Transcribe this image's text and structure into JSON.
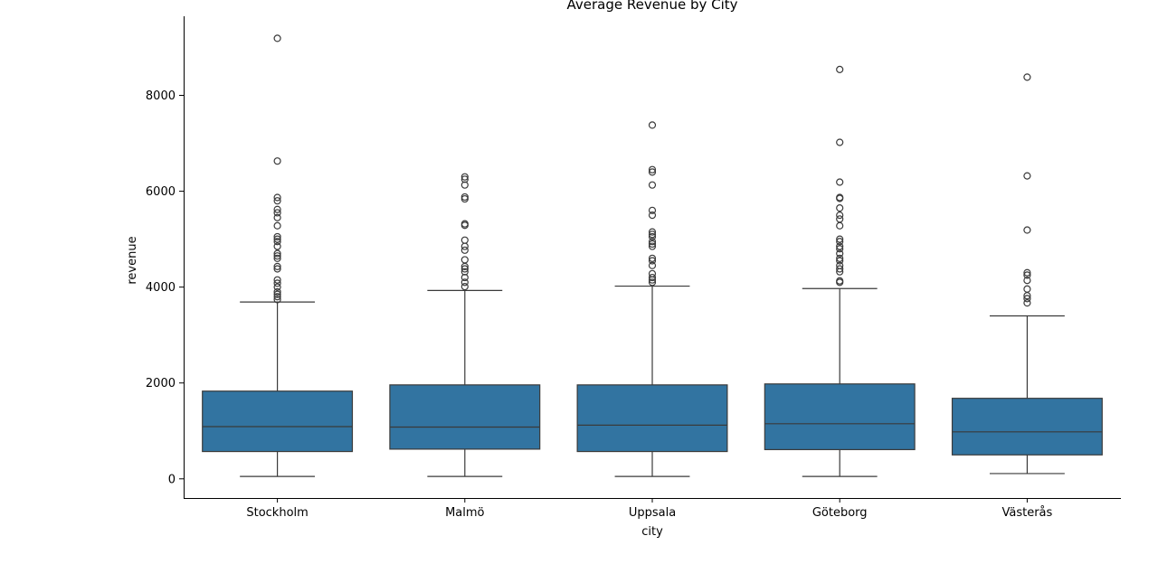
{
  "chart_data": {
    "type": "box",
    "title": "Average Revenue by City",
    "xlabel": "city",
    "ylabel": "revenue",
    "ylim": [
      -400,
      9650
    ],
    "yticks": [
      0,
      2000,
      4000,
      6000,
      8000
    ],
    "grid": false,
    "colors": {
      "box_fill": "#3274a1",
      "line": "#3a3a3a",
      "axis": "#000000"
    },
    "categories": [
      "Stockholm",
      "Malmö",
      "Uppsala",
      "Göteborg",
      "Västerås"
    ],
    "series": [
      {
        "category": "Stockholm",
        "whisker_low": 50,
        "q1": 570,
        "median": 1090,
        "q3": 1830,
        "whisker_high": 3690,
        "outliers": [
          3740,
          3800,
          3850,
          3900,
          4000,
          4080,
          4150,
          4380,
          4430,
          4600,
          4650,
          4700,
          4850,
          4950,
          5000,
          5050,
          5280,
          5450,
          5550,
          5620,
          5800,
          5870,
          6630,
          9190
        ]
      },
      {
        "category": "Malmö",
        "whisker_low": 50,
        "q1": 620,
        "median": 1080,
        "q3": 1960,
        "whisker_high": 3930,
        "outliers": [
          4010,
          4100,
          4200,
          4320,
          4380,
          4430,
          4570,
          4770,
          4850,
          4980,
          5290,
          5320,
          5840,
          5880,
          6130,
          6250,
          6300
        ]
      },
      {
        "category": "Uppsala",
        "whisker_low": 50,
        "q1": 570,
        "median": 1120,
        "q3": 1960,
        "whisker_high": 4020,
        "outliers": [
          4100,
          4150,
          4200,
          4280,
          4450,
          4550,
          4600,
          4850,
          4900,
          4950,
          5050,
          5100,
          5150,
          5500,
          5600,
          6130,
          6400,
          6450,
          7380
        ]
      },
      {
        "category": "Göteborg",
        "whisker_low": 50,
        "q1": 610,
        "median": 1150,
        "q3": 1980,
        "whisker_high": 3970,
        "outliers": [
          4100,
          4130,
          4320,
          4380,
          4450,
          4550,
          4600,
          4700,
          4800,
          4850,
          4950,
          5000,
          5280,
          5420,
          5500,
          5650,
          5850,
          5870,
          6190,
          7020,
          8540
        ]
      },
      {
        "category": "Västerås",
        "whisker_low": 110,
        "q1": 500,
        "median": 980,
        "q3": 1680,
        "whisker_high": 3400,
        "outliers": [
          3670,
          3760,
          3820,
          3960,
          4140,
          4250,
          4300,
          5190,
          6320,
          8380
        ]
      }
    ]
  }
}
